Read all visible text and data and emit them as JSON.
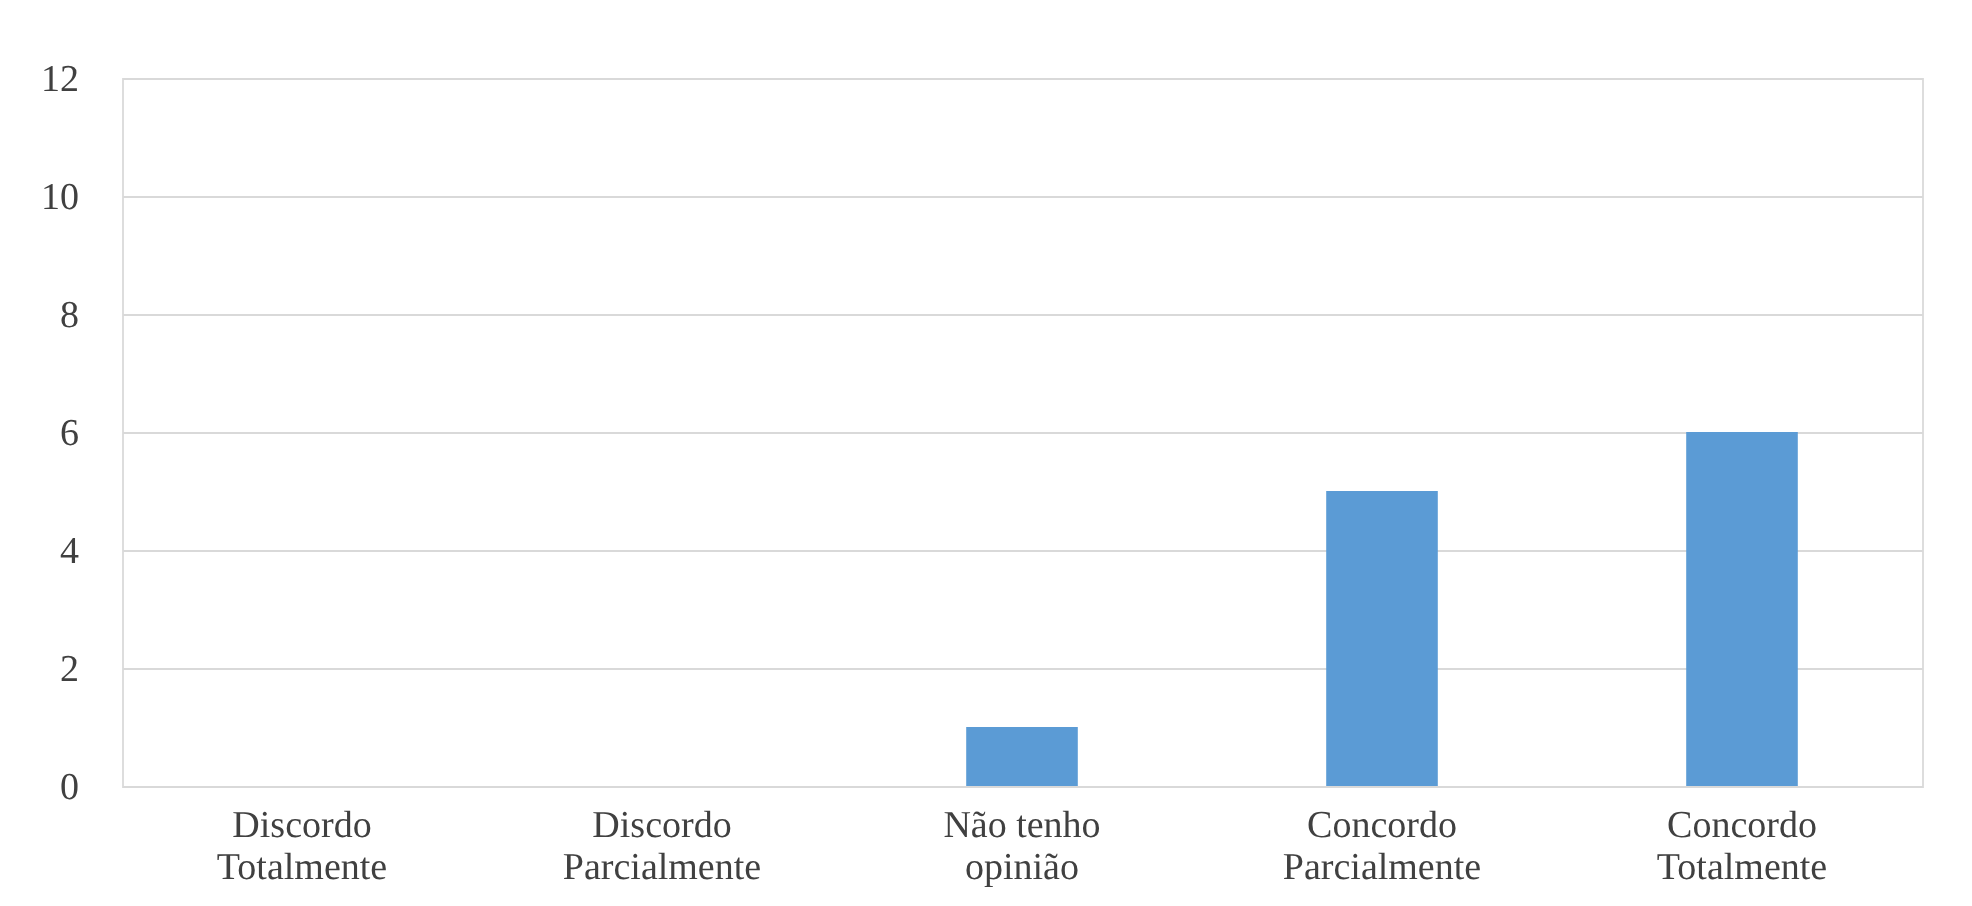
{
  "chart_data": {
    "type": "bar",
    "categories": [
      "Discordo Totalmente",
      "Discordo Parcialmente",
      "Não tenho opinião",
      "Concordo Parcialmente",
      "Concordo Totalmente"
    ],
    "values": [
      0,
      0,
      1,
      5,
      6
    ],
    "color": "#5b9bd5",
    "ylim": [
      0,
      12
    ],
    "yticks": [
      0,
      2,
      4,
      6,
      8,
      10,
      12
    ],
    "grid": "y"
  }
}
